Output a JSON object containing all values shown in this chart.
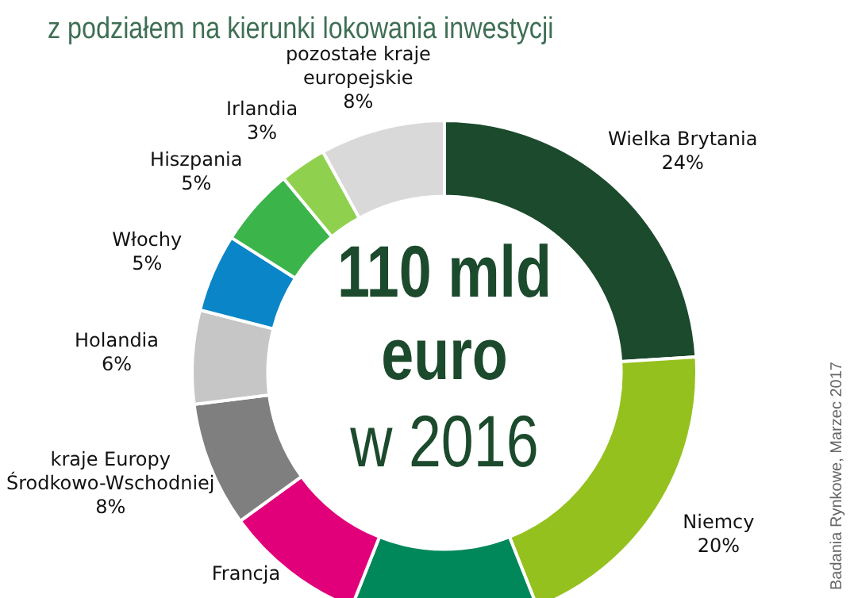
{
  "chart_data": {
    "type": "donut",
    "title": "z podziałem na kierunki lokowania inwestycji",
    "categories": [
      "Wielka Brytania",
      "Niemcy",
      null,
      "Francja",
      "kraje Europy Środkowo-Wschodniej",
      "Holandia",
      "Włochy",
      "Hiszpania",
      "Irlandia",
      "pozostałe kraje europejskie"
    ],
    "values": [
      24,
      20,
      12,
      9,
      8,
      6,
      5,
      5,
      3,
      8
    ],
    "value_labels": [
      "24%",
      "20%",
      null,
      null,
      "8%",
      "6%",
      "5%",
      "5%",
      "3%",
      "8%"
    ],
    "colors": [
      "#1b4a2c",
      "#95c11f",
      "#00875a",
      "#e2007a",
      "#7f7f7f",
      "#c6c6c6",
      "#0a86c8",
      "#3bb54a",
      "#8fd14f",
      "#d9d9d9"
    ],
    "legend": false,
    "annotations": [
      "110 mld euro",
      "w 2016",
      "Badania Rynkowe, Marzec 2017"
    ]
  }
}
